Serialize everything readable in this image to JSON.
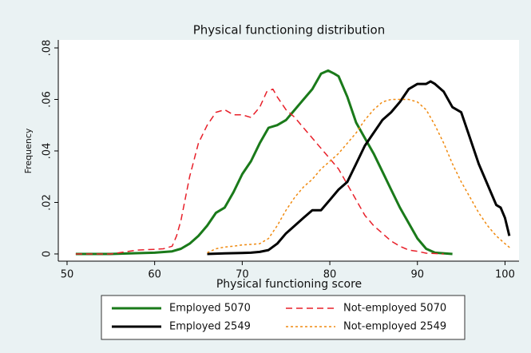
{
  "chart_data": {
    "type": "line",
    "title": "Physical functioning distribution",
    "x_label": "Physical functioning score",
    "y_label": "Frequency",
    "xlim": [
      49,
      101.6
    ],
    "ylim": [
      -0.0028,
      0.0831
    ],
    "xticks": [
      50,
      60,
      70,
      80,
      90,
      100
    ],
    "yticks": [
      0,
      {
        "value": 0.02,
        "label": ".02"
      },
      {
        "value": 0.04,
        "label": ".04"
      },
      {
        "value": 0.06,
        "label": ".06"
      },
      {
        "value": 0.08,
        "label": ".08"
      }
    ],
    "grid": false,
    "series": [
      {
        "name": "Employed 5070",
        "color": "#1a7a1a",
        "style": "solid",
        "x": [
          51,
          55,
          58,
          60,
          62,
          63,
          64,
          65,
          66,
          67,
          68,
          69,
          70,
          71,
          72,
          73,
          74,
          75,
          76,
          77,
          78,
          79,
          79.8,
          80.5,
          81,
          82,
          83,
          84,
          85,
          86,
          87,
          88,
          89,
          90,
          91,
          92,
          94
        ],
        "values": [
          0,
          0,
          0.0003,
          0.0005,
          0.001,
          0.002,
          0.004,
          0.007,
          0.011,
          0.016,
          0.018,
          0.024,
          0.031,
          0.036,
          0.043,
          0.049,
          0.05,
          0.052,
          0.056,
          0.06,
          0.064,
          0.07,
          0.0712,
          0.07,
          0.069,
          0.061,
          0.051,
          0.045,
          0.039,
          0.032,
          0.025,
          0.018,
          0.012,
          0.006,
          0.002,
          0.0005,
          0
        ]
      },
      {
        "name": "Not-employed 5070",
        "color": "#e8202a",
        "style": "dashed",
        "x": [
          51,
          55,
          56,
          57,
          58,
          60,
          61,
          62,
          62.5,
          63,
          64,
          65,
          66,
          67,
          68,
          69,
          70,
          71,
          72,
          72.8,
          73.5,
          74,
          75,
          76,
          77,
          78,
          79,
          80,
          81,
          82,
          83,
          84,
          85,
          86,
          87,
          88,
          89,
          90,
          91,
          93
        ],
        "values": [
          0,
          0,
          0.0005,
          0.001,
          0.0015,
          0.0018,
          0.002,
          0.003,
          0.007,
          0.013,
          0.03,
          0.043,
          0.05,
          0.055,
          0.056,
          0.054,
          0.054,
          0.053,
          0.057,
          0.063,
          0.064,
          0.061,
          0.056,
          0.053,
          0.049,
          0.045,
          0.041,
          0.037,
          0.033,
          0.027,
          0.021,
          0.015,
          0.011,
          0.008,
          0.005,
          0.003,
          0.0015,
          0.001,
          0.0003,
          0
        ]
      },
      {
        "name": "Employed 2549",
        "color": "#000000",
        "style": "solid",
        "x": [
          66,
          68,
          70,
          71,
          72,
          73,
          74,
          75,
          76,
          77,
          78,
          79,
          80,
          81,
          82,
          83,
          84,
          85,
          86,
          87,
          88,
          89,
          90,
          91,
          91.5,
          92,
          93,
          94,
          95,
          96,
          97,
          98,
          99,
          99.5,
          100,
          100.5
        ],
        "values": [
          0,
          0.0002,
          0.0004,
          0.0005,
          0.0008,
          0.0015,
          0.004,
          0.008,
          0.011,
          0.014,
          0.017,
          0.017,
          0.021,
          0.025,
          0.028,
          0.035,
          0.042,
          0.047,
          0.052,
          0.055,
          0.059,
          0.064,
          0.066,
          0.066,
          0.067,
          0.066,
          0.063,
          0.057,
          0.055,
          0.045,
          0.035,
          0.027,
          0.019,
          0.018,
          0.014,
          0.007
        ]
      },
      {
        "name": "Not-employed 2549",
        "color": "#f08a10",
        "style": "dotted",
        "x": [
          66,
          67,
          68,
          69,
          70,
          71,
          72,
          73,
          74,
          75,
          76,
          77,
          78,
          79,
          80,
          81,
          82,
          83,
          84,
          85,
          86,
          87,
          88,
          89,
          90,
          91,
          92,
          93,
          94,
          95,
          96,
          97,
          98,
          99,
          100,
          100.7
        ],
        "values": [
          0.0005,
          0.002,
          0.0027,
          0.003,
          0.0035,
          0.0037,
          0.004,
          0.006,
          0.011,
          0.017,
          0.022,
          0.026,
          0.029,
          0.033,
          0.036,
          0.039,
          0.043,
          0.047,
          0.052,
          0.056,
          0.059,
          0.06,
          0.06,
          0.06,
          0.059,
          0.056,
          0.05,
          0.043,
          0.035,
          0.028,
          0.022,
          0.016,
          0.011,
          0.007,
          0.004,
          0.002
        ]
      }
    ]
  }
}
